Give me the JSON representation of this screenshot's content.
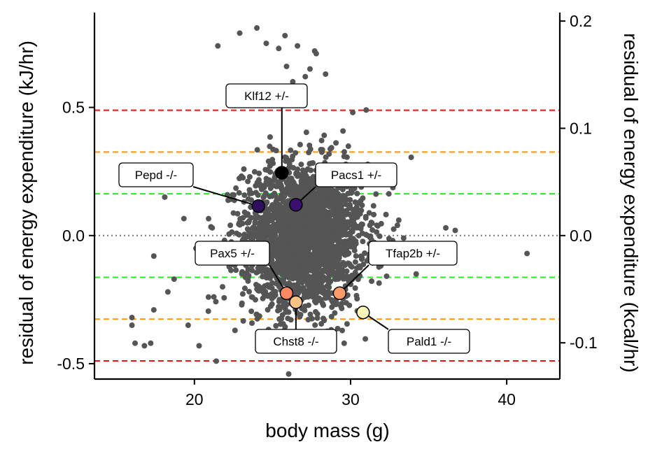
{
  "chart_data": {
    "type": "scatter",
    "xlabel": "body mass (g)",
    "ylabel": "residual of energy expenditure (kJ/hr)",
    "ylabel_right": "residual of energy expenditure (kcal/hr)",
    "xlim": [
      13.6,
      43.4
    ],
    "ylim": [
      -0.56,
      0.87
    ],
    "ylim_right_kcal": [
      -0.1338,
      0.2079
    ],
    "x_ticks": [
      20,
      30,
      40
    ],
    "y_ticks": [
      -0.5,
      0.0,
      0.5
    ],
    "y_tick_labels": [
      "-0.5",
      "0.0",
      "0.5"
    ],
    "y_ticks_right": [
      -0.1,
      0.0,
      0.1,
      0.2
    ],
    "y_tick_labels_right": [
      "-0.1",
      "0.0",
      "0.1",
      "0.2"
    ],
    "grid": false,
    "reference_lines": [
      {
        "y": 0.0,
        "color": "#777777",
        "style": "dotted"
      },
      {
        "y": 0.163,
        "color": "#22ee22",
        "style": "dashed"
      },
      {
        "y": -0.163,
        "color": "#22ee22",
        "style": "dashed"
      },
      {
        "y": 0.326,
        "color": "#ff9900",
        "style": "dashed"
      },
      {
        "y": -0.326,
        "color": "#ff9900",
        "style": "dashed"
      },
      {
        "y": 0.489,
        "color": "#ee1111",
        "style": "dashed"
      },
      {
        "y": -0.489,
        "color": "#ee1111",
        "style": "dashed"
      }
    ],
    "background_points_color": "#555555",
    "background_points_summary": {
      "x_center": 27.0,
      "y_center": 0.0,
      "x_sd": 1.9,
      "y_sd": 0.14,
      "count_approx": 2500
    },
    "background_outliers": [
      [
        24.0,
        0.81
      ],
      [
        22.9,
        0.79
      ],
      [
        25.8,
        0.78
      ],
      [
        21.5,
        0.74
      ],
      [
        24.6,
        0.75
      ],
      [
        25.4,
        0.73
      ],
      [
        26.6,
        0.74
      ],
      [
        27.7,
        0.72
      ],
      [
        27.8,
        0.71
      ],
      [
        25.9,
        0.66
      ],
      [
        27.4,
        0.65
      ],
      [
        27.1,
        0.62
      ],
      [
        28.4,
        0.63
      ],
      [
        26.3,
        0.6
      ],
      [
        31.0,
        0.49
      ],
      [
        41.3,
        -0.07
      ],
      [
        17.4,
        -0.08
      ],
      [
        18.7,
        -0.17
      ],
      [
        18.3,
        -0.22
      ],
      [
        17.4,
        -0.29
      ],
      [
        16.0,
        -0.32
      ],
      [
        16.0,
        -0.35
      ],
      [
        19.6,
        -0.35
      ],
      [
        16.2,
        -0.42
      ],
      [
        16.8,
        -0.43
      ],
      [
        17.2,
        -0.42
      ],
      [
        20.3,
        -0.43
      ],
      [
        21.4,
        -0.49
      ],
      [
        18.1,
        0.15
      ],
      [
        20.1,
        -0.05
      ],
      [
        33.4,
        -0.01
      ],
      [
        33.0,
        0.04
      ],
      [
        36.7,
        0.02
      ],
      [
        34.2,
        -0.15
      ],
      [
        20.9,
        -0.24
      ],
      [
        22.6,
        -0.37
      ],
      [
        36.1,
        0.03
      ],
      [
        32.7,
        0.27
      ],
      [
        21.8,
        -0.2
      ],
      [
        22.3,
        0.04
      ]
    ],
    "highlighted_points": [
      {
        "label": "Klf12 +/-",
        "x": 25.6,
        "y": 0.245,
        "color": "#000000"
      },
      {
        "label": "Pepd -/-",
        "x": 24.1,
        "y": 0.115,
        "color": "#2e0f5e"
      },
      {
        "label": "Pacs1 +/-",
        "x": 26.5,
        "y": 0.12,
        "color": "#3b0f70"
      },
      {
        "label": "Pax5 +/-",
        "x": 25.9,
        "y": -0.225,
        "color": "#fb8861"
      },
      {
        "label": "Chst8 -/-",
        "x": 26.5,
        "y": -0.26,
        "color": "#fec287"
      },
      {
        "label": "Tfap2b +/-",
        "x": 29.3,
        "y": -0.225,
        "color": "#fb9b6a"
      },
      {
        "label": "Pald1 -/-",
        "x": 30.8,
        "y": -0.3,
        "color": "#fcf5b8"
      }
    ]
  }
}
